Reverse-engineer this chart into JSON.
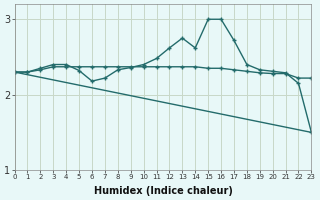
{
  "xlabel": "Humidex (Indice chaleur)",
  "ylabel": "",
  "background_color": "#e8f8f8",
  "grid_color": "#c8d8c8",
  "line_color": "#236b6b",
  "x": [
    0,
    1,
    2,
    3,
    4,
    5,
    6,
    7,
    8,
    9,
    10,
    11,
    12,
    13,
    14,
    15,
    16,
    17,
    18,
    19,
    20,
    21,
    22,
    23
  ],
  "line1": [
    2.3,
    2.3,
    2.35,
    2.4,
    2.4,
    2.32,
    2.18,
    2.22,
    2.33,
    2.36,
    2.4,
    2.48,
    2.62,
    2.75,
    2.62,
    3.0,
    3.0,
    2.72,
    2.4,
    2.33,
    2.31,
    2.29,
    2.15,
    1.5
  ],
  "line2": [
    2.3,
    2.3,
    2.33,
    2.37,
    2.37,
    2.37,
    2.37,
    2.37,
    2.37,
    2.37,
    2.37,
    2.37,
    2.37,
    2.37,
    2.37,
    2.35,
    2.35,
    2.33,
    2.31,
    2.29,
    2.28,
    2.28,
    2.22,
    2.22
  ],
  "line3_x": [
    0,
    23
  ],
  "line3_y": [
    2.3,
    1.5
  ],
  "xlim": [
    0,
    23
  ],
  "ylim": [
    1.0,
    3.2
  ],
  "yticks": [
    1,
    2,
    3
  ],
  "xticks": [
    0,
    1,
    2,
    3,
    4,
    5,
    6,
    7,
    8,
    9,
    10,
    11,
    12,
    13,
    14,
    15,
    16,
    17,
    18,
    19,
    20,
    21,
    22,
    23
  ]
}
